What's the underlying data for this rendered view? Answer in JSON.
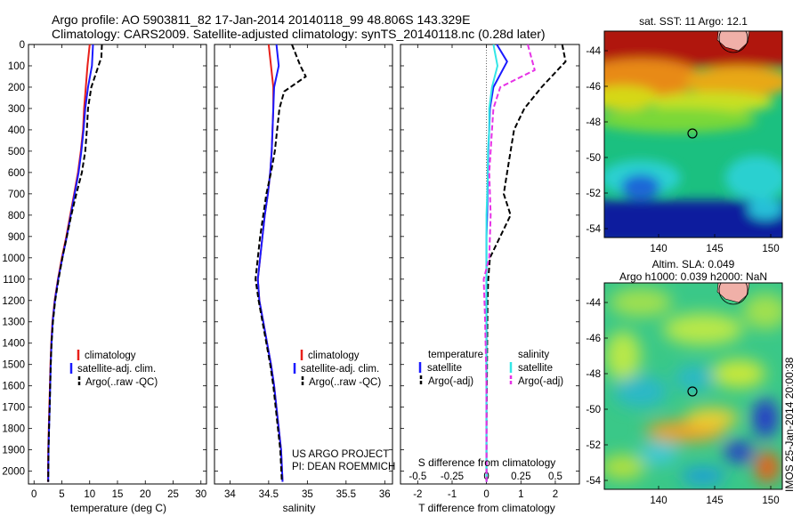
{
  "header": {
    "line1": "Argo profile: AO 5903811_82 17-Jan-2014 20140118_99 48.806S 143.329E",
    "line2": "Climatology: CARS2009. Satellite-adjusted climatology: synTS_20140118.nc (0.28d later)"
  },
  "depth_ticks": [
    0,
    100,
    200,
    300,
    400,
    500,
    600,
    700,
    800,
    900,
    1000,
    1100,
    1200,
    1300,
    1400,
    1500,
    1600,
    1700,
    1800,
    1900,
    2000
  ],
  "panels": {
    "temperature": {
      "xlabel": "temperature (deg C)",
      "xticks": [
        "0",
        "5",
        "10",
        "15",
        "20",
        "25",
        "30"
      ],
      "legend": [
        "climatology",
        "satellite-adj. clim.",
        "Argo(..raw -QC)"
      ]
    },
    "salinity": {
      "xlabel": "salinity",
      "xticks": [
        "34",
        "34.5",
        "35",
        "35.5",
        "36"
      ],
      "legend": [
        "climatology",
        "satellite-adj. clim.",
        "Argo(..raw -QC)"
      ],
      "note1": "US ARGO PROJECT",
      "note2": "PI: DEAN ROEMMICH"
    },
    "difference": {
      "xlabel": "T difference from climatology",
      "xlabel_top": "S difference from climatology",
      "xticks_t": [
        "-2",
        "-1",
        "0",
        "1",
        "2"
      ],
      "xticks_s": [
        "-0.5",
        "-0.25",
        "0",
        "0.25",
        "0.5"
      ],
      "legend_t_title": "temperature",
      "legend_s_title": "salinity",
      "legend_t": [
        "satellite",
        "Argo(-adj)"
      ],
      "legend_s": [
        "satellite",
        "Argo(-adj)"
      ]
    }
  },
  "maps": {
    "sst_title": "sat. SST: 11 Argo: 12.1",
    "sla_title1": "Altim. SLA: 0.049",
    "sla_title2": "Argo h1000: 0.039 h2000: NaN",
    "lat_ticks": [
      "-44",
      "-46",
      "-48",
      "-50",
      "-52",
      "-54"
    ],
    "lon_ticks": [
      "140",
      "145",
      "150"
    ],
    "stamp": "IMOS 25-Jan-2014 20:00:38"
  },
  "colors": {
    "climatology": "#e8201a",
    "satellite": "#1a1aff",
    "argo": "#000000",
    "satellite_s": "#33e6e6",
    "argo_s": "#e632e6"
  },
  "chart_data": [
    {
      "type": "line",
      "title": "",
      "xlabel": "temperature (deg C)",
      "ylabel": "",
      "xlim": [
        -1,
        31
      ],
      "ylim": [
        2060,
        0
      ],
      "series": [
        {
          "name": "climatology",
          "x": [
            10.0,
            9.6,
            9.3,
            9.0,
            8.8,
            8.4,
            7.9,
            7.2,
            6.5,
            5.8,
            5.0,
            4.3,
            3.7,
            3.3,
            3.1,
            2.95,
            2.85,
            2.75,
            2.65,
            2.55,
            2.5
          ],
          "y": [
            0,
            100,
            200,
            300,
            400,
            500,
            600,
            700,
            800,
            900,
            1000,
            1100,
            1200,
            1300,
            1400,
            1500,
            1600,
            1700,
            1800,
            1900,
            2050
          ]
        },
        {
          "name": "satellite-adj. clim.",
          "x": [
            10.6,
            10.4,
            9.7,
            9.2,
            8.9,
            8.5,
            8.0,
            7.3,
            6.6,
            5.9,
            5.1,
            4.35,
            3.75,
            3.35,
            3.15,
            3.0,
            2.9,
            2.8,
            2.7,
            2.6,
            2.55
          ],
          "y": [
            0,
            100,
            200,
            300,
            400,
            500,
            600,
            700,
            800,
            900,
            1000,
            1100,
            1200,
            1300,
            1400,
            1500,
            1600,
            1700,
            1800,
            1900,
            2050
          ]
        },
        {
          "name": "Argo(..raw -QC)",
          "x": [
            12.2,
            12.1,
            10.3,
            9.7,
            9.5,
            9.2,
            8.6,
            7.6,
            6.7,
            5.9,
            5.1,
            4.4,
            3.8,
            3.4,
            3.15,
            3.0,
            2.9,
            2.8,
            2.7,
            2.6,
            2.55
          ],
          "y": [
            0,
            60,
            200,
            300,
            400,
            500,
            600,
            700,
            800,
            900,
            1000,
            1100,
            1200,
            1300,
            1400,
            1500,
            1600,
            1700,
            1800,
            1900,
            2050
          ]
        }
      ]
    },
    {
      "type": "line",
      "title": "",
      "xlabel": "salinity",
      "ylabel": "",
      "xlim": [
        33.8,
        36.1
      ],
      "ylim": [
        2060,
        0
      ],
      "series": [
        {
          "name": "climatology",
          "x": [
            34.5,
            34.53,
            34.56,
            34.56,
            34.55,
            34.54,
            34.52,
            34.49,
            34.45,
            34.42,
            34.39,
            34.36,
            34.38,
            34.43,
            34.48,
            34.53,
            34.57,
            34.6,
            34.63,
            34.66,
            34.68
          ],
          "y": [
            0,
            100,
            200,
            300,
            400,
            500,
            600,
            700,
            800,
            900,
            1000,
            1100,
            1200,
            1300,
            1400,
            1500,
            1600,
            1700,
            1800,
            1900,
            2050
          ]
        },
        {
          "name": "satellite-adj. clim.",
          "x": [
            34.6,
            34.63,
            34.57,
            34.56,
            34.55,
            34.54,
            34.52,
            34.49,
            34.45,
            34.42,
            34.39,
            34.36,
            34.38,
            34.43,
            34.48,
            34.53,
            34.57,
            34.6,
            34.63,
            34.66,
            34.68
          ],
          "y": [
            0,
            100,
            200,
            300,
            400,
            500,
            600,
            700,
            800,
            900,
            1000,
            1100,
            1200,
            1300,
            1400,
            1500,
            1600,
            1700,
            1800,
            1900,
            2050
          ]
        },
        {
          "name": "Argo(..raw -QC)",
          "x": [
            34.8,
            34.91,
            34.98,
            34.7,
            34.64,
            34.61,
            34.58,
            34.53,
            34.47,
            34.43,
            34.39,
            34.33,
            34.37,
            34.42,
            34.47,
            34.52,
            34.56,
            34.59,
            34.62,
            34.65,
            34.67
          ],
          "y": [
            0,
            100,
            150,
            220,
            300,
            400,
            500,
            600,
            700,
            800,
            900,
            1100,
            1200,
            1300,
            1400,
            1500,
            1600,
            1700,
            1800,
            1900,
            2050
          ]
        }
      ]
    },
    {
      "type": "line",
      "title": "",
      "xlabel": "T difference from climatology",
      "ylabel": "",
      "xlim": [
        -2.5,
        2.7
      ],
      "ylim": [
        2060,
        0
      ],
      "series": [
        {
          "name": "satellite",
          "x": [
            0.3,
            0.6,
            0.2,
            0.1,
            0.08,
            0.05,
            0.04,
            0.03,
            0.02,
            0.0,
            0.0,
            0.0,
            0.0,
            0.0,
            0.0,
            0.0,
            0.0,
            0.0,
            0.0
          ],
          "y": [
            0,
            80,
            200,
            300,
            400,
            500,
            600,
            700,
            800,
            900,
            1000,
            1100,
            1200,
            1300,
            1400,
            1500,
            1700,
            1900,
            2050
          ]
        },
        {
          "name": "Argo(-adj)",
          "x": [
            2.2,
            2.3,
            1.6,
            1.1,
            0.8,
            0.7,
            0.6,
            0.5,
            0.7,
            0.4,
            0.1,
            0.05,
            0.03,
            0.02,
            0.01,
            0.0,
            0.0
          ],
          "y": [
            0,
            80,
            200,
            300,
            400,
            500,
            600,
            700,
            800,
            900,
            1000,
            1100,
            1200,
            1400,
            1600,
            1800,
            2050
          ]
        }
      ]
    },
    {
      "type": "line",
      "title": "",
      "xlabel": "S difference from climatology",
      "ylabel": "",
      "xlim": [
        -0.625,
        0.675
      ],
      "ylim": [
        2060,
        0
      ],
      "series": [
        {
          "name": "satellite",
          "x": [
            0.05,
            0.08,
            0.04,
            0.02,
            0.02,
            0.01,
            0.01,
            0.0,
            0.0,
            0.0,
            0.0,
            0.0,
            0.0,
            0.0
          ],
          "y": [
            0,
            100,
            200,
            300,
            400,
            500,
            600,
            800,
            1000,
            1200,
            1400,
            1600,
            1800,
            2050
          ]
        },
        {
          "name": "Argo(-adj)",
          "x": [
            0.3,
            0.35,
            0.1,
            0.05,
            0.04,
            0.03,
            0.02,
            0.03,
            0.02,
            0.0,
            -0.02,
            -0.01,
            0.0,
            0.0
          ],
          "y": [
            0,
            120,
            200,
            300,
            400,
            500,
            600,
            800,
            1000,
            1050,
            1100,
            1300,
            1600,
            2050
          ]
        }
      ]
    }
  ]
}
